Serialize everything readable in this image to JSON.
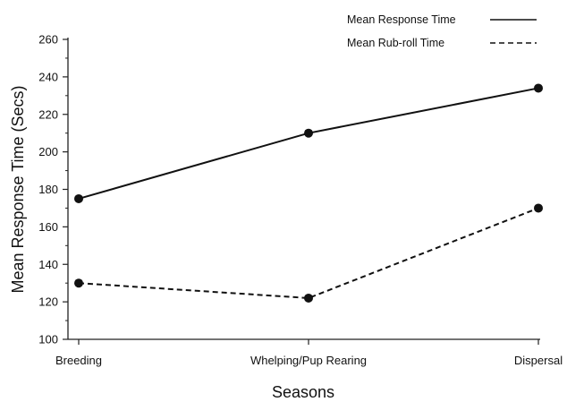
{
  "chart_data": {
    "type": "line",
    "title": "",
    "xlabel": "Seasons",
    "ylabel": "Mean Response Time (Secs)",
    "categories": [
      "Breeding",
      "Whelping/Pup Rearing",
      "Dispersal"
    ],
    "ylim": [
      100,
      260
    ],
    "yticks": [
      100,
      120,
      140,
      160,
      180,
      200,
      220,
      240,
      260
    ],
    "grid": false,
    "legend_position": "top-right",
    "series": [
      {
        "name": "Mean Response Time",
        "values": [
          175,
          210,
          234
        ],
        "line_style": "solid",
        "color": "#111111"
      },
      {
        "name": "Mean Rub-roll Time",
        "values": [
          130,
          122,
          170
        ],
        "line_style": "dashed",
        "color": "#111111"
      }
    ]
  }
}
